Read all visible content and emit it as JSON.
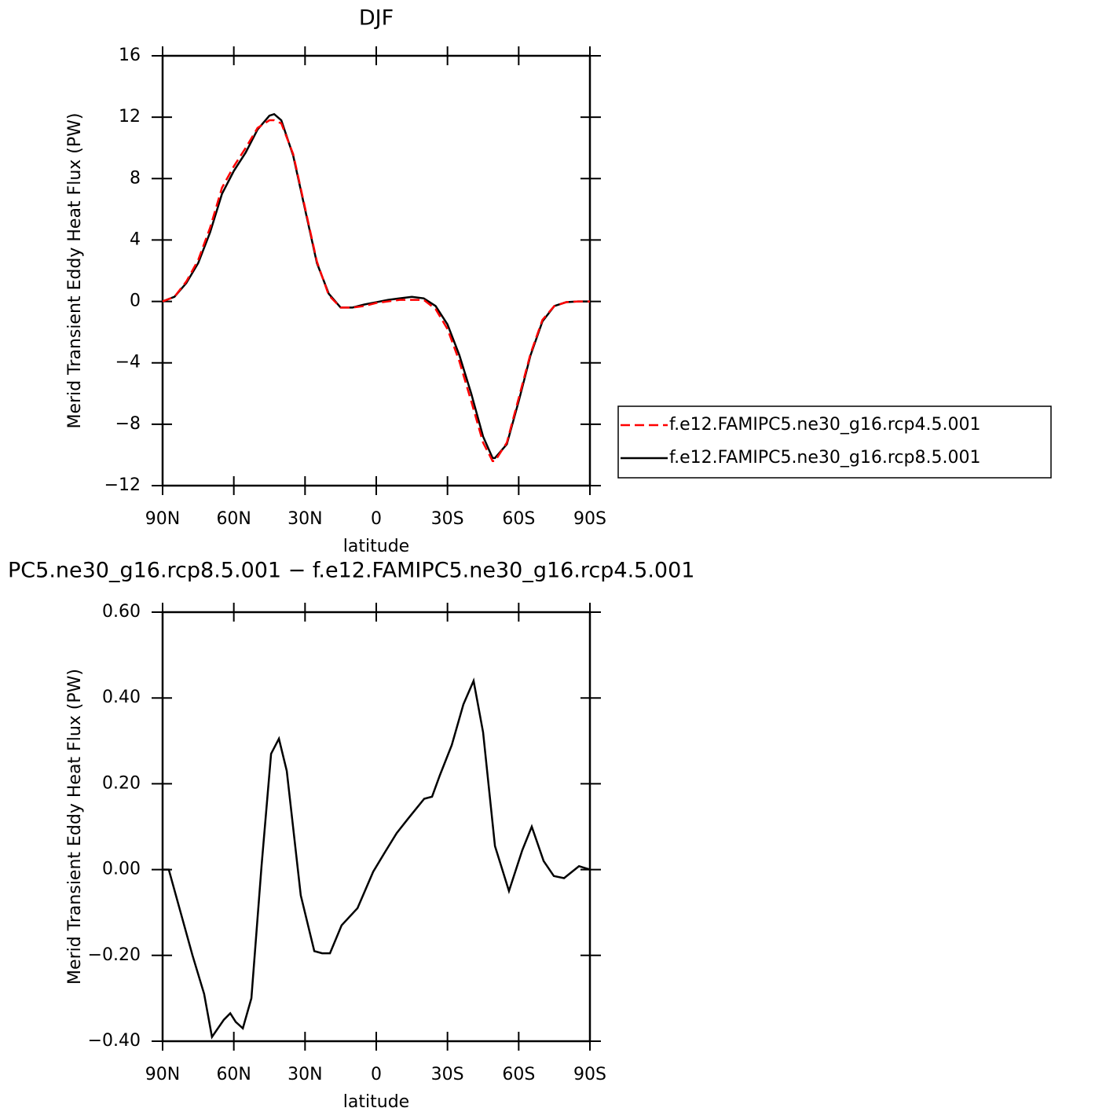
{
  "chart_data": [
    {
      "type": "line",
      "title": "DJF",
      "x_label": "latitude",
      "y_label": "Merid Transient Eddy Heat Flux (PW)",
      "x": [
        90,
        85,
        80,
        75,
        70,
        65,
        60,
        55,
        50,
        45,
        43,
        40,
        35,
        30,
        25,
        20,
        15,
        10,
        5,
        0,
        -5,
        -10,
        -15,
        -20,
        -25,
        -30,
        -35,
        -40,
        -45,
        -49,
        -50,
        -55,
        -60,
        -65,
        -70,
        -75,
        -80,
        -85,
        -90
      ],
      "series": [
        {
          "name": "f.e12.FAMIPC5.ne30_g16.rcp4.5.001",
          "color": "#ff0000",
          "linestyle": "dashed",
          "values": [
            0,
            0.3,
            1.3,
            2.7,
            4.8,
            7.4,
            8.8,
            10,
            11.3,
            11.8,
            11.8,
            11.6,
            9.6,
            6.1,
            2.6,
            0.4,
            -0.4,
            -0.4,
            -0.3,
            -0.1,
            0,
            0.1,
            0.1,
            0.1,
            -0.5,
            -1.8,
            -3.9,
            -6.5,
            -9.2,
            -10.4,
            -10.4,
            -9.2,
            -6.3,
            -3.4,
            -1.2,
            -0.3,
            -0.05,
            0,
            0
          ]
        },
        {
          "name": "f.e12.FAMIPC5.ne30_g16.rcp8.5.001",
          "color": "#000000",
          "linestyle": "solid",
          "values": [
            0,
            0.3,
            1.2,
            2.5,
            4.5,
            7,
            8.5,
            9.7,
            11.2,
            12.1,
            12.2,
            11.8,
            9.5,
            6,
            2.5,
            0.5,
            -0.4,
            -0.4,
            -0.2,
            -0.05,
            0.1,
            0.2,
            0.3,
            0.2,
            -0.3,
            -1.5,
            -3.5,
            -6,
            -8.8,
            -10.2,
            -10.2,
            -9.3,
            -6.5,
            -3.5,
            -1.3,
            -0.3,
            -0.05,
            0,
            0
          ]
        }
      ],
      "xlim": [
        90,
        -90
      ],
      "xticks": [
        {
          "value": 90,
          "label": "90N"
        },
        {
          "value": 60,
          "label": "60N"
        },
        {
          "value": 30,
          "label": "30N"
        },
        0,
        {
          "value": -30,
          "label": "30S"
        },
        {
          "value": -60,
          "label": "60S"
        },
        {
          "value": -90,
          "label": "90S"
        }
      ],
      "ylim": [
        -12,
        16
      ],
      "yticks": [
        {
          "value": -12,
          "label": "−12"
        },
        {
          "value": -8,
          "label": "−8"
        },
        {
          "value": -4,
          "label": "−4"
        },
        0,
        4,
        8,
        12,
        16
      ]
    },
    {
      "type": "line",
      "title": "PC5.ne30_g16.rcp8.5.001 − f.e12.FAMIPC5.ne30_g16.rcp4.5.001",
      "x_label": "latitude",
      "y_label": "Merid Transient Eddy Heat Flux (PW)",
      "x": [
        90,
        87.4,
        82.4,
        77.4,
        72.5,
        69.2,
        64.2,
        61.5,
        59.2,
        56.2,
        52.6,
        48.3,
        44.3,
        41,
        37.7,
        31.8,
        26.1,
        22.8,
        19.5,
        14.6,
        7.9,
        1.3,
        -3.6,
        -8.6,
        -13.6,
        -20.2,
        -23.5,
        -26.8,
        -31.8,
        -36.7,
        -41,
        -45,
        -50,
        -55.9,
        -61.5,
        -65.5,
        -70.5,
        -74.8,
        -79.1,
        -85.4,
        -90
      ],
      "series": [
        {
          "name": null,
          "color": "#000000",
          "linestyle": "solid",
          "values": [
            0,
            0,
            -0.1,
            -0.2,
            -0.29,
            -0.39,
            -0.35,
            -0.335,
            -0.355,
            -0.37,
            -0.3,
            0.01,
            0.27,
            0.305,
            0.23,
            -0.06,
            -0.19,
            -0.195,
            -0.195,
            -0.13,
            -0.09,
            -0.005,
            0.04,
            0.085,
            0.12,
            0.165,
            0.17,
            0.22,
            0.29,
            0.385,
            0.44,
            0.32,
            0.055,
            -0.05,
            0.045,
            0.1,
            0.02,
            -0.015,
            -0.02,
            0.008,
            0
          ]
        }
      ],
      "xlim": [
        90,
        -90
      ],
      "xticks": [
        {
          "value": 90,
          "label": "90N"
        },
        {
          "value": 60,
          "label": "60N"
        },
        {
          "value": 30,
          "label": "30N"
        },
        0,
        {
          "value": -30,
          "label": "30S"
        },
        {
          "value": -60,
          "label": "60S"
        },
        {
          "value": -90,
          "label": "90S"
        }
      ],
      "ylim": [
        -0.4,
        0.6
      ],
      "yticks": [
        {
          "value": -0.4,
          "label": "−0.40"
        },
        {
          "value": -0.2,
          "label": "−0.20"
        },
        {
          "value": 0,
          "label": "0.00"
        },
        {
          "value": 0.2,
          "label": "0.20"
        },
        {
          "value": 0.4,
          "label": "0.40"
        },
        {
          "value": 0.6,
          "label": "0.60"
        }
      ]
    }
  ]
}
